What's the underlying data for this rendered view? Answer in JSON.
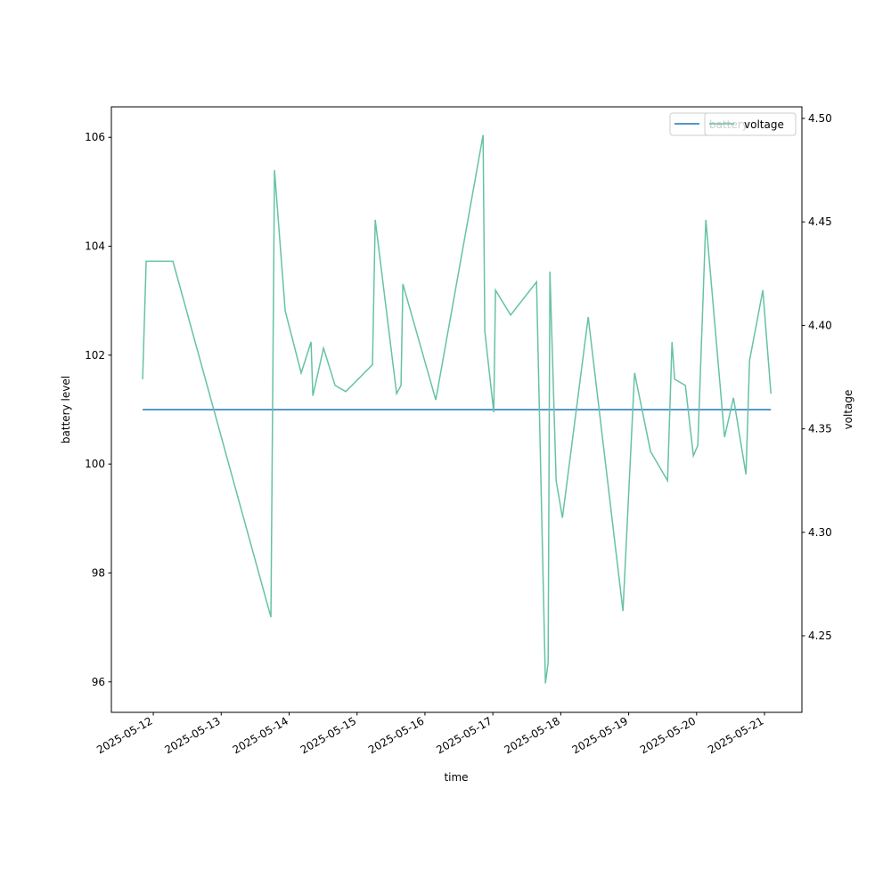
{
  "chart_data": {
    "type": "line",
    "x_label": "time",
    "y_label": "battery level",
    "y2_label": "voltage",
    "x": [
      "2025-05-11T20:14",
      "2025-05-11T21:29",
      "2025-05-12T06:56",
      "2025-05-13T17:34",
      "2025-05-13T18:50",
      "2025-05-13T22:37",
      "2025-05-14T04:16",
      "2025-05-14T07:45",
      "2025-05-14T08:23",
      "2025-05-14T12:10",
      "2025-05-14T16:15",
      "2025-05-14T20:02",
      "2025-05-15T05:28",
      "2025-05-15T06:26",
      "2025-05-15T13:59",
      "2025-05-15T15:33",
      "2025-05-15T16:12",
      "2025-05-16T03:50",
      "2025-05-16T20:33",
      "2025-05-16T21:10",
      "2025-05-17T00:19",
      "2025-05-17T00:56",
      "2025-05-17T06:17",
      "2025-05-17T15:26",
      "2025-05-17T18:35",
      "2025-05-17T19:32",
      "2025-05-17T20:10",
      "2025-05-17T22:22",
      "2025-05-18T00:35",
      "2025-05-18T09:42",
      "2025-05-18T21:59",
      "2025-05-19T02:05",
      "2025-05-19T07:45",
      "2025-05-19T13:44",
      "2025-05-19T15:19",
      "2025-05-19T16:15",
      "2025-05-19T20:02",
      "2025-05-19T22:52",
      "2025-05-20T00:26",
      "2025-05-20T03:16",
      "2025-05-20T09:53",
      "2025-05-20T13:02",
      "2025-05-20T17:27",
      "2025-05-20T18:43",
      "2025-05-20T23:25",
      "2025-05-21T02:16"
    ],
    "series": [
      {
        "name": "battery",
        "color": "#1f77b4",
        "values": [
          101,
          101,
          101,
          101,
          101,
          101,
          101,
          101,
          101,
          101,
          101,
          101,
          101,
          101,
          101,
          101,
          101,
          101,
          101,
          101,
          101,
          101,
          101,
          101,
          101,
          101,
          101,
          101,
          101,
          101,
          101,
          101,
          101,
          101,
          101,
          101,
          101,
          101,
          101,
          101,
          101,
          101,
          101,
          101,
          101,
          101
        ]
      },
      {
        "name": "voltage",
        "color": "#66c2a5",
        "axis": "y2",
        "values": [
          4.374,
          4.431,
          4.431,
          4.259,
          4.475,
          4.407,
          4.377,
          4.392,
          4.366,
          4.389,
          4.371,
          4.368,
          4.381,
          4.451,
          4.367,
          4.371,
          4.42,
          4.364,
          4.492,
          4.397,
          4.358,
          4.417,
          4.405,
          4.421,
          4.227,
          4.237,
          4.426,
          4.325,
          4.307,
          4.404,
          4.262,
          4.377,
          4.339,
          4.325,
          4.392,
          4.374,
          4.371,
          4.337,
          4.342,
          4.451,
          4.346,
          4.365,
          4.328,
          4.383,
          4.417,
          4.367
        ]
      }
    ],
    "xlim": [
      "2025-05-11T09:11",
      "2025-05-21T13:13"
    ],
    "xticks": [
      "2025-05-12",
      "2025-05-13",
      "2025-05-14",
      "2025-05-15",
      "2025-05-16",
      "2025-05-17",
      "2025-05-18",
      "2025-05-19",
      "2025-05-20",
      "2025-05-21"
    ],
    "ylim": [
      95.44,
      106.56
    ],
    "yticks": [
      96,
      98,
      100,
      102,
      104,
      106
    ],
    "y2lim": [
      4.213,
      4.5056
    ],
    "y2ticks": [
      4.25,
      {
        "value": 4.3,
        "label": "4.30"
      },
      4.35,
      {
        "value": 4.4,
        "label": "4.40"
      },
      4.45,
      {
        "value": 4.5,
        "label": "4.50"
      }
    ],
    "legend": "upper right"
  }
}
